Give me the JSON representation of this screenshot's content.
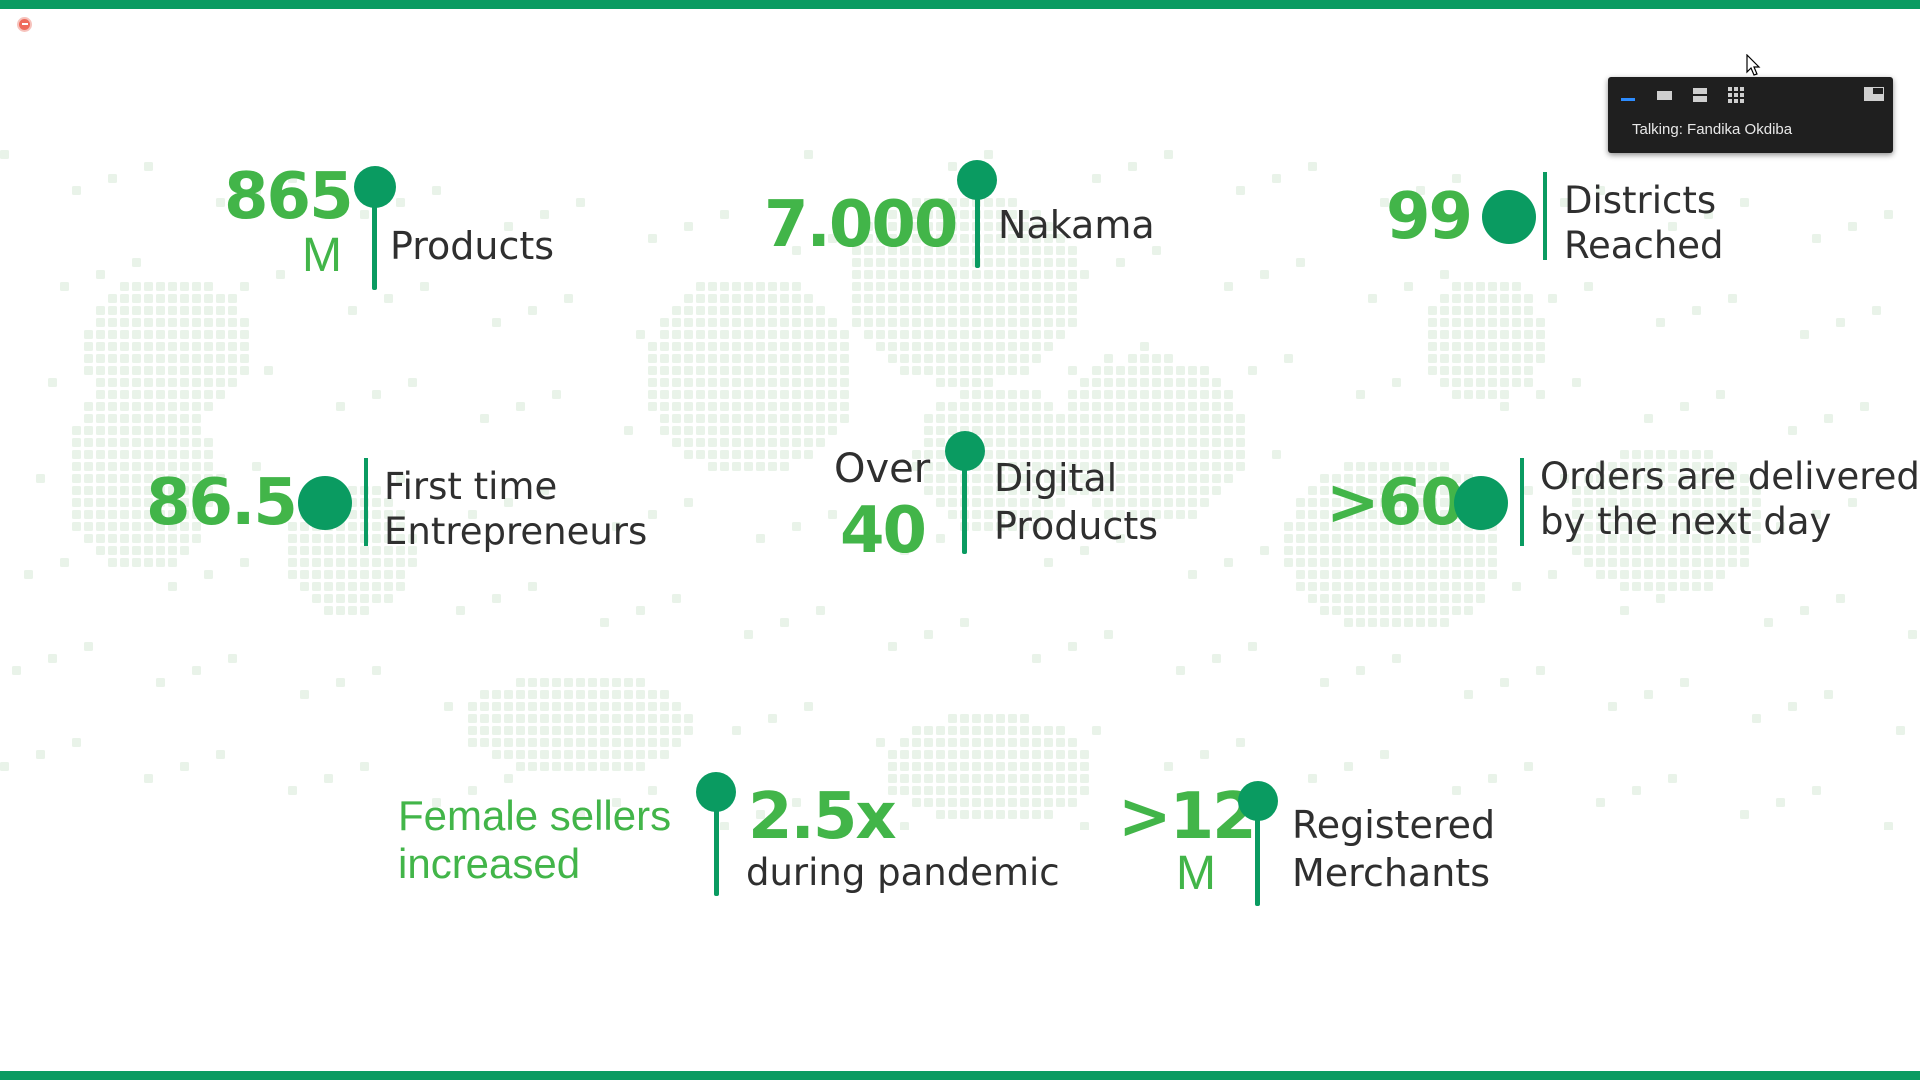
{
  "stats": {
    "products": {
      "number": "865",
      "unit": "M",
      "label": "Products"
    },
    "nakama": {
      "number": "7.000",
      "label": "Nakama"
    },
    "districts": {
      "number": "99",
      "label_line1": "Districts",
      "label_line2": "Reached"
    },
    "entrepreneurs": {
      "number": "86.5",
      "label_line1": "First time",
      "label_line2": "Entrepreneurs"
    },
    "digital": {
      "prefix": "Over",
      "number": "40",
      "label_line1": "Digital",
      "label_line2": "Products"
    },
    "orders": {
      "number": ">60",
      "label_line1": "Orders are delivered",
      "label_line2": "by the next day"
    },
    "female": {
      "intro_line1": "Female sellers",
      "intro_line2": "increased",
      "number": "2.5x",
      "label": "during pandemic"
    },
    "merchants": {
      "number": ">12",
      "unit": "M",
      "label_line1": "Registered",
      "label_line2": "Merchants"
    }
  },
  "meeting_panel": {
    "talking_text": "Talking: Fandika Okdiba",
    "icons": [
      "minimize-icon",
      "speaker-view-icon",
      "strip-view-icon",
      "gallery-view-icon",
      "exit-fullscreen-icon"
    ]
  },
  "colors": {
    "brand_green": "#42b549",
    "pin_green": "#0a9b61",
    "recording": "#ef6b5b"
  }
}
